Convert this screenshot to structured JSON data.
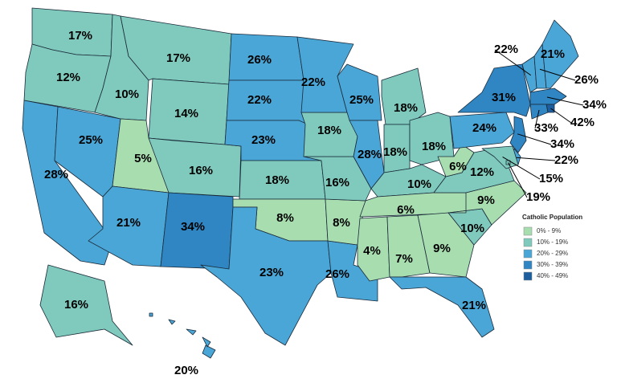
{
  "map": {
    "regions": [
      {
        "label": "17%",
        "color": "#7fcabd"
      },
      {
        "label": "12%",
        "color": "#7fcabd"
      },
      {
        "label": "28%",
        "color": "#4aa6d6"
      },
      {
        "label": "25%",
        "color": "#4aa6d6"
      },
      {
        "label": "10%",
        "color": "#7fcabd"
      },
      {
        "label": "17%",
        "color": "#7fcabd"
      },
      {
        "label": "14%",
        "color": "#7fcabd"
      },
      {
        "label": "5%",
        "color": "#a8ddb0"
      },
      {
        "label": "16%",
        "color": "#7fcabd"
      },
      {
        "label": "21%",
        "color": "#4aa6d6"
      },
      {
        "label": "34%",
        "color": "#2f86c3"
      },
      {
        "label": "26%",
        "color": "#4aa6d6"
      },
      {
        "label": "22%",
        "color": "#4aa6d6"
      },
      {
        "label": "23%",
        "color": "#4aa6d6"
      },
      {
        "label": "18%",
        "color": "#7fcabd"
      },
      {
        "label": "8%",
        "color": "#a8ddb0"
      },
      {
        "label": "23%",
        "color": "#4aa6d6"
      },
      {
        "label": "26%",
        "color": "#4aa6d6"
      },
      {
        "label": "8%",
        "color": "#a8ddb0"
      },
      {
        "label": "16%",
        "color": "#7fcabd"
      },
      {
        "label": "18%",
        "color": "#7fcabd"
      },
      {
        "label": "22%",
        "color": "#4aa6d6"
      },
      {
        "label": "25%",
        "color": "#4aa6d6"
      },
      {
        "label": "28%",
        "color": "#4aa6d6"
      },
      {
        "label": "18%",
        "color": "#7fcabd"
      },
      {
        "label": "18%",
        "color": "#7fcabd"
      },
      {
        "label": "18%",
        "color": "#7fcabd"
      },
      {
        "label": "10%",
        "color": "#7fcabd"
      },
      {
        "label": "6%",
        "color": "#a8ddb0"
      },
      {
        "label": "4%",
        "color": "#a8ddb0"
      },
      {
        "label": "7%",
        "color": "#a8ddb0"
      },
      {
        "label": "9%",
        "color": "#a8ddb0"
      },
      {
        "label": "21%",
        "color": "#4aa6d6"
      },
      {
        "label": "10%",
        "color": "#7fcabd"
      },
      {
        "label": "9%",
        "color": "#a8ddb0"
      },
      {
        "label": "12%",
        "color": "#7fcabd"
      },
      {
        "label": "6%",
        "color": "#a8ddb0"
      },
      {
        "label": "24%",
        "color": "#4aa6d6"
      },
      {
        "label": "31%",
        "color": "#2f86c3"
      },
      {
        "label": "22%",
        "color": "#4aa6d6"
      },
      {
        "label": "26%",
        "color": "#4aa6d6"
      },
      {
        "label": "21%",
        "color": "#4aa6d6"
      },
      {
        "label": "34%",
        "color": "#2f86c3"
      },
      {
        "label": "42%",
        "color": "#1c5e9e"
      },
      {
        "label": "33%",
        "color": "#2f86c3"
      },
      {
        "label": "34%",
        "color": "#2f86c3"
      },
      {
        "label": "22%",
        "color": "#4aa6d6"
      },
      {
        "label": "15%",
        "color": "#7fcabd"
      },
      {
        "label": "19%",
        "color": "#7fcabd"
      },
      {
        "label": "16%",
        "color": "#7fcabd"
      },
      {
        "label": "20%",
        "color": "#4aa6d6"
      }
    ],
    "legend": {
      "title": "Catholic Population",
      "items": [
        {
          "label": "0% - 9%",
          "color": "#a8ddb0"
        },
        {
          "label": "10% - 19%",
          "color": "#7fcabd"
        },
        {
          "label": "20% - 29%",
          "color": "#4aa6d6"
        },
        {
          "label": "30% - 39%",
          "color": "#2f86c3"
        },
        {
          "label": "40% - 49%",
          "color": "#1c5e9e"
        }
      ]
    }
  }
}
